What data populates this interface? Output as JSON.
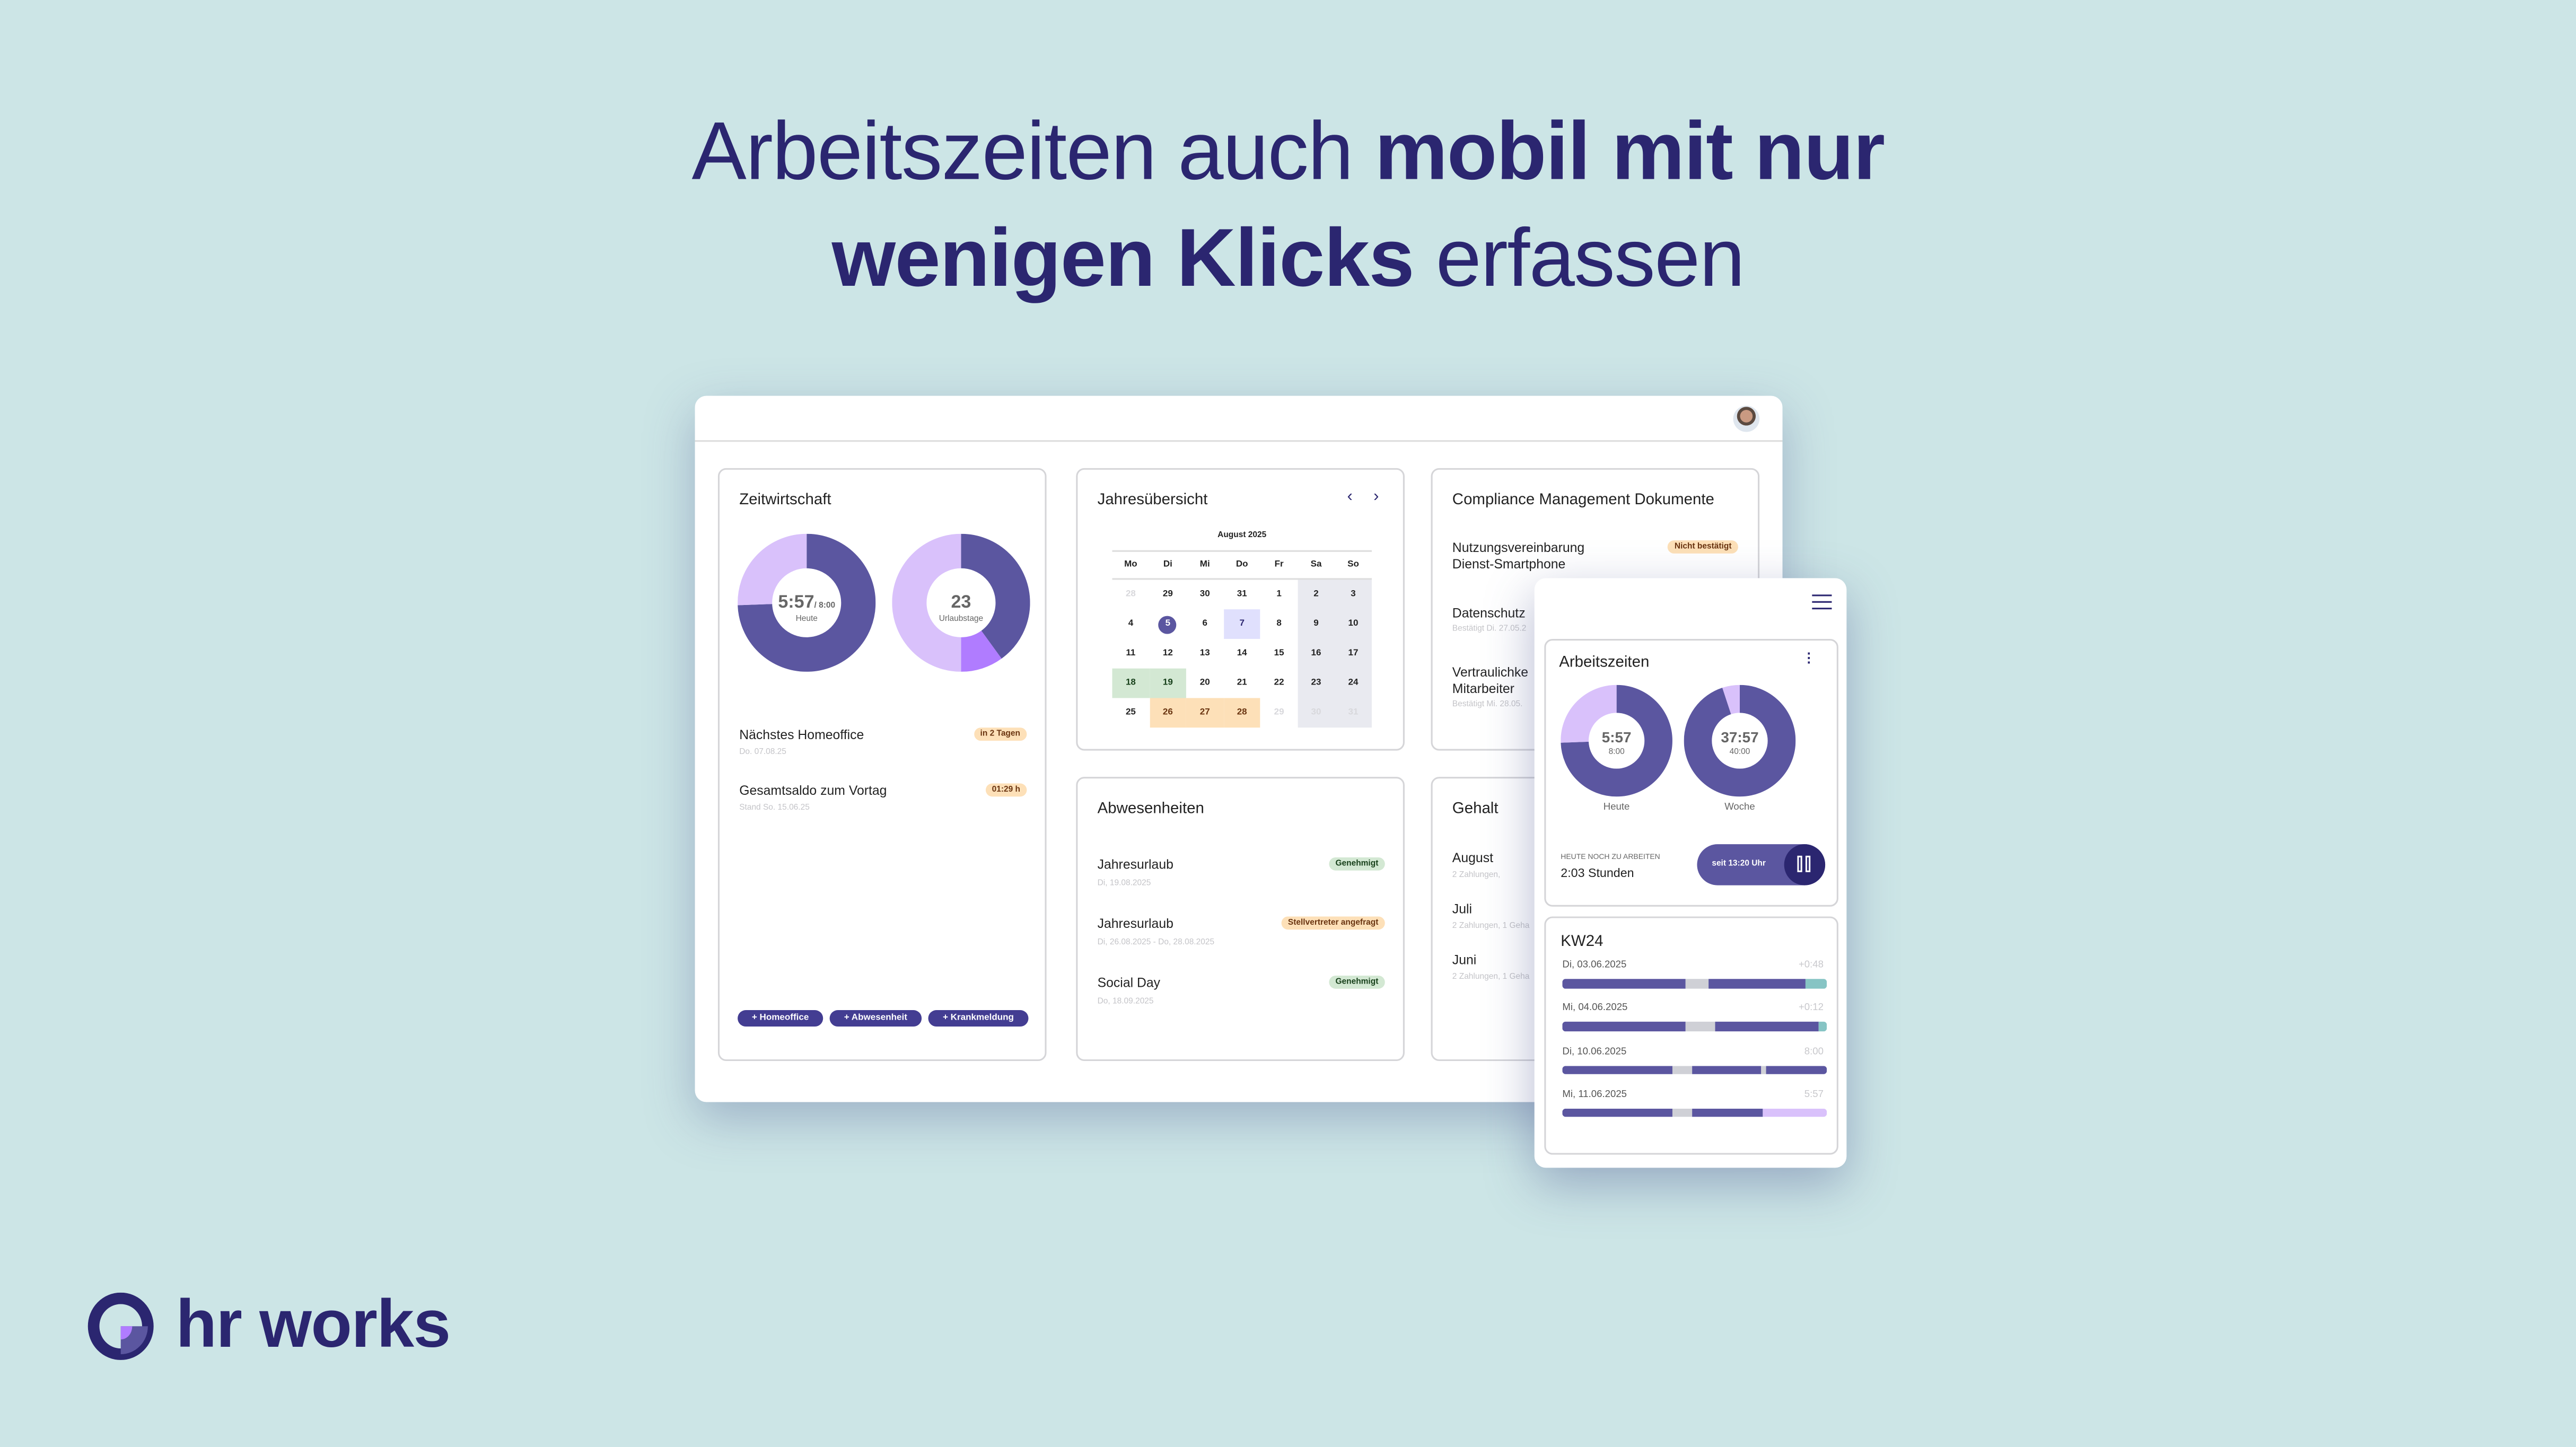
{
  "headline": {
    "line1_light": "Arbeitszeiten auch ",
    "line1_bold": "mobil mit nur",
    "line2_bold": "wenigen Klicks",
    "line2_light": " erfassen"
  },
  "colors": {
    "background": "#cce5e6",
    "brand_navy": "#2b2670",
    "primary": "#5b56a0",
    "light_purple": "#d9c1fb",
    "bright_purple": "#b07cff",
    "overtime_teal": "#86c4c4",
    "break_gray": "#cfd0d6"
  },
  "desktop": {
    "avatar_icon": "user-avatar-photo",
    "zeitwirtschaft": {
      "title": "Zeitwirtschaft",
      "today_donut": {
        "value": "5:57",
        "target": "/ 8:00",
        "label": "Heute",
        "fraction_worked": 0.744
      },
      "vacation_donut": {
        "value": "23",
        "label": "Urlaubstage",
        "segments": [
          {
            "fraction": 0.4,
            "color": "#5b56a0"
          },
          {
            "fraction": 0.1,
            "color": "#b07cff"
          },
          {
            "fraction": 0.5,
            "color": "#d9c1fb"
          }
        ]
      },
      "items": [
        {
          "label": "Nächstes Homeoffice",
          "sub": "Do. 07.08.25",
          "badge": "in 2 Tagen"
        },
        {
          "label": "Gesamtsaldo zum Vortag",
          "sub": "Stand So. 15.06.25",
          "badge": "01:29 h"
        }
      ],
      "buttons": [
        "+ Homeoffice",
        "+ Abwesenheit",
        "+ Krankmeldung"
      ]
    },
    "calendar": {
      "title": "Jahresübersicht",
      "prev_icon": "chevron-left-icon",
      "next_icon": "chevron-right-icon",
      "month": "August 2025",
      "weekdays": [
        "Mo",
        "Di",
        "Mi",
        "Do",
        "Fr",
        "Sa",
        "So"
      ],
      "weeks": [
        [
          {
            "d": "28",
            "s": "muted"
          },
          {
            "d": "29"
          },
          {
            "d": "30"
          },
          {
            "d": "31"
          },
          {
            "d": "1"
          },
          {
            "d": "2"
          },
          {
            "d": "3"
          }
        ],
        [
          {
            "d": "4"
          },
          {
            "d": "5",
            "s": "today"
          },
          {
            "d": "6"
          },
          {
            "d": "7",
            "s": "homeoffice"
          },
          {
            "d": "8"
          },
          {
            "d": "9"
          },
          {
            "d": "10"
          }
        ],
        [
          {
            "d": "11"
          },
          {
            "d": "12"
          },
          {
            "d": "13"
          },
          {
            "d": "14"
          },
          {
            "d": "15"
          },
          {
            "d": "16"
          },
          {
            "d": "17"
          }
        ],
        [
          {
            "d": "18",
            "s": "approved"
          },
          {
            "d": "19",
            "s": "approved"
          },
          {
            "d": "20"
          },
          {
            "d": "21"
          },
          {
            "d": "22"
          },
          {
            "d": "23"
          },
          {
            "d": "24"
          }
        ],
        [
          {
            "d": "25"
          },
          {
            "d": "26",
            "s": "requested"
          },
          {
            "d": "27",
            "s": "requested"
          },
          {
            "d": "28",
            "s": "requested"
          },
          {
            "d": "29",
            "s": "muted"
          },
          {
            "d": "30",
            "s": "muted"
          },
          {
            "d": "31",
            "s": "muted"
          }
        ]
      ]
    },
    "compliance": {
      "title": "Compliance Management Dokumente",
      "items": [
        {
          "label": "Nutzungsvereinbarung",
          "label2": "Dienst-Smartphone",
          "badge": "Nicht bestätigt"
        },
        {
          "label": "Datenschutz",
          "sub": "Bestätigt Di. 27.05.2"
        },
        {
          "label": "Vertraulichke",
          "label2": "Mitarbeiter",
          "sub": "Bestätigt Mi. 28.05."
        }
      ]
    },
    "absences": {
      "title": "Abwesenheiten",
      "items": [
        {
          "label": "Jahresurlaub",
          "sub": "Di, 19.08.2025",
          "badge": "Genehmigt",
          "status": "approved"
        },
        {
          "label": "Jahresurlaub",
          "sub": "Di, 26.08.2025 - Do, 28.08.2025",
          "badge": "Stellvertreter angefragt",
          "status": "requested"
        },
        {
          "label": "Social Day",
          "sub": "Do, 18.09.2025",
          "badge": "Genehmigt",
          "status": "approved"
        }
      ]
    },
    "salary": {
      "title": "Gehalt",
      "items": [
        {
          "label": "August",
          "sub": "2 Zahlungen,"
        },
        {
          "label": "Juli",
          "sub": "2 Zahlungen, 1 Geha"
        },
        {
          "label": "Juni",
          "sub": "2 Zahlungen, 1 Geha"
        }
      ]
    }
  },
  "mobile": {
    "menu_icon": "hamburger-menu-icon",
    "worktime": {
      "title": "Arbeitszeiten",
      "more_icon": "vertical-dots-icon",
      "donuts": [
        {
          "value": "5:57",
          "target": "8:00",
          "label": "Heute",
          "fraction_worked": 0.744
        },
        {
          "value": "37:57",
          "target": "40:00",
          "label": "Woche",
          "fraction_worked": 0.949
        }
      ],
      "remaining_label": "HEUTE NOCH ZU ARBEITEN",
      "remaining_value": "2:03 Stunden",
      "timer_label": "seit 13:20 Uhr",
      "pause_icon": "pause-icon"
    },
    "week": {
      "title": "KW24",
      "days": [
        {
          "date": "Di, 03.06.2025",
          "value": "+0:48",
          "segments": [
            {
              "t": "work",
              "f": 0.464
            },
            {
              "t": "break",
              "f": 0.088
            },
            {
              "t": "work",
              "f": 0.367
            },
            {
              "t": "overtime",
              "f": 0.081
            }
          ]
        },
        {
          "date": "Mi, 04.06.2025",
          "value": "+0:12",
          "segments": [
            {
              "t": "work",
              "f": 0.464
            },
            {
              "t": "break",
              "f": 0.115
            },
            {
              "t": "work",
              "f": 0.393
            },
            {
              "t": "overtime",
              "f": 0.028
            }
          ]
        },
        {
          "date": "Di, 10.06.2025",
          "value": "8:00",
          "segments": [
            {
              "t": "work",
              "f": 0.419
            },
            {
              "t": "break",
              "f": 0.074
            },
            {
              "t": "work",
              "f": 0.26
            },
            {
              "t": "break",
              "f": 0.015
            },
            {
              "t": "work",
              "f": 0.232
            }
          ]
        },
        {
          "date": "Mi, 11.06.2025",
          "value": "5:57",
          "segments": [
            {
              "t": "work",
              "f": 0.419
            },
            {
              "t": "break",
              "f": 0.074
            },
            {
              "t": "work",
              "f": 0.267
            },
            {
              "t": "remaining",
              "f": 0.24
            }
          ]
        }
      ]
    }
  },
  "logo": {
    "text": "hr works"
  }
}
